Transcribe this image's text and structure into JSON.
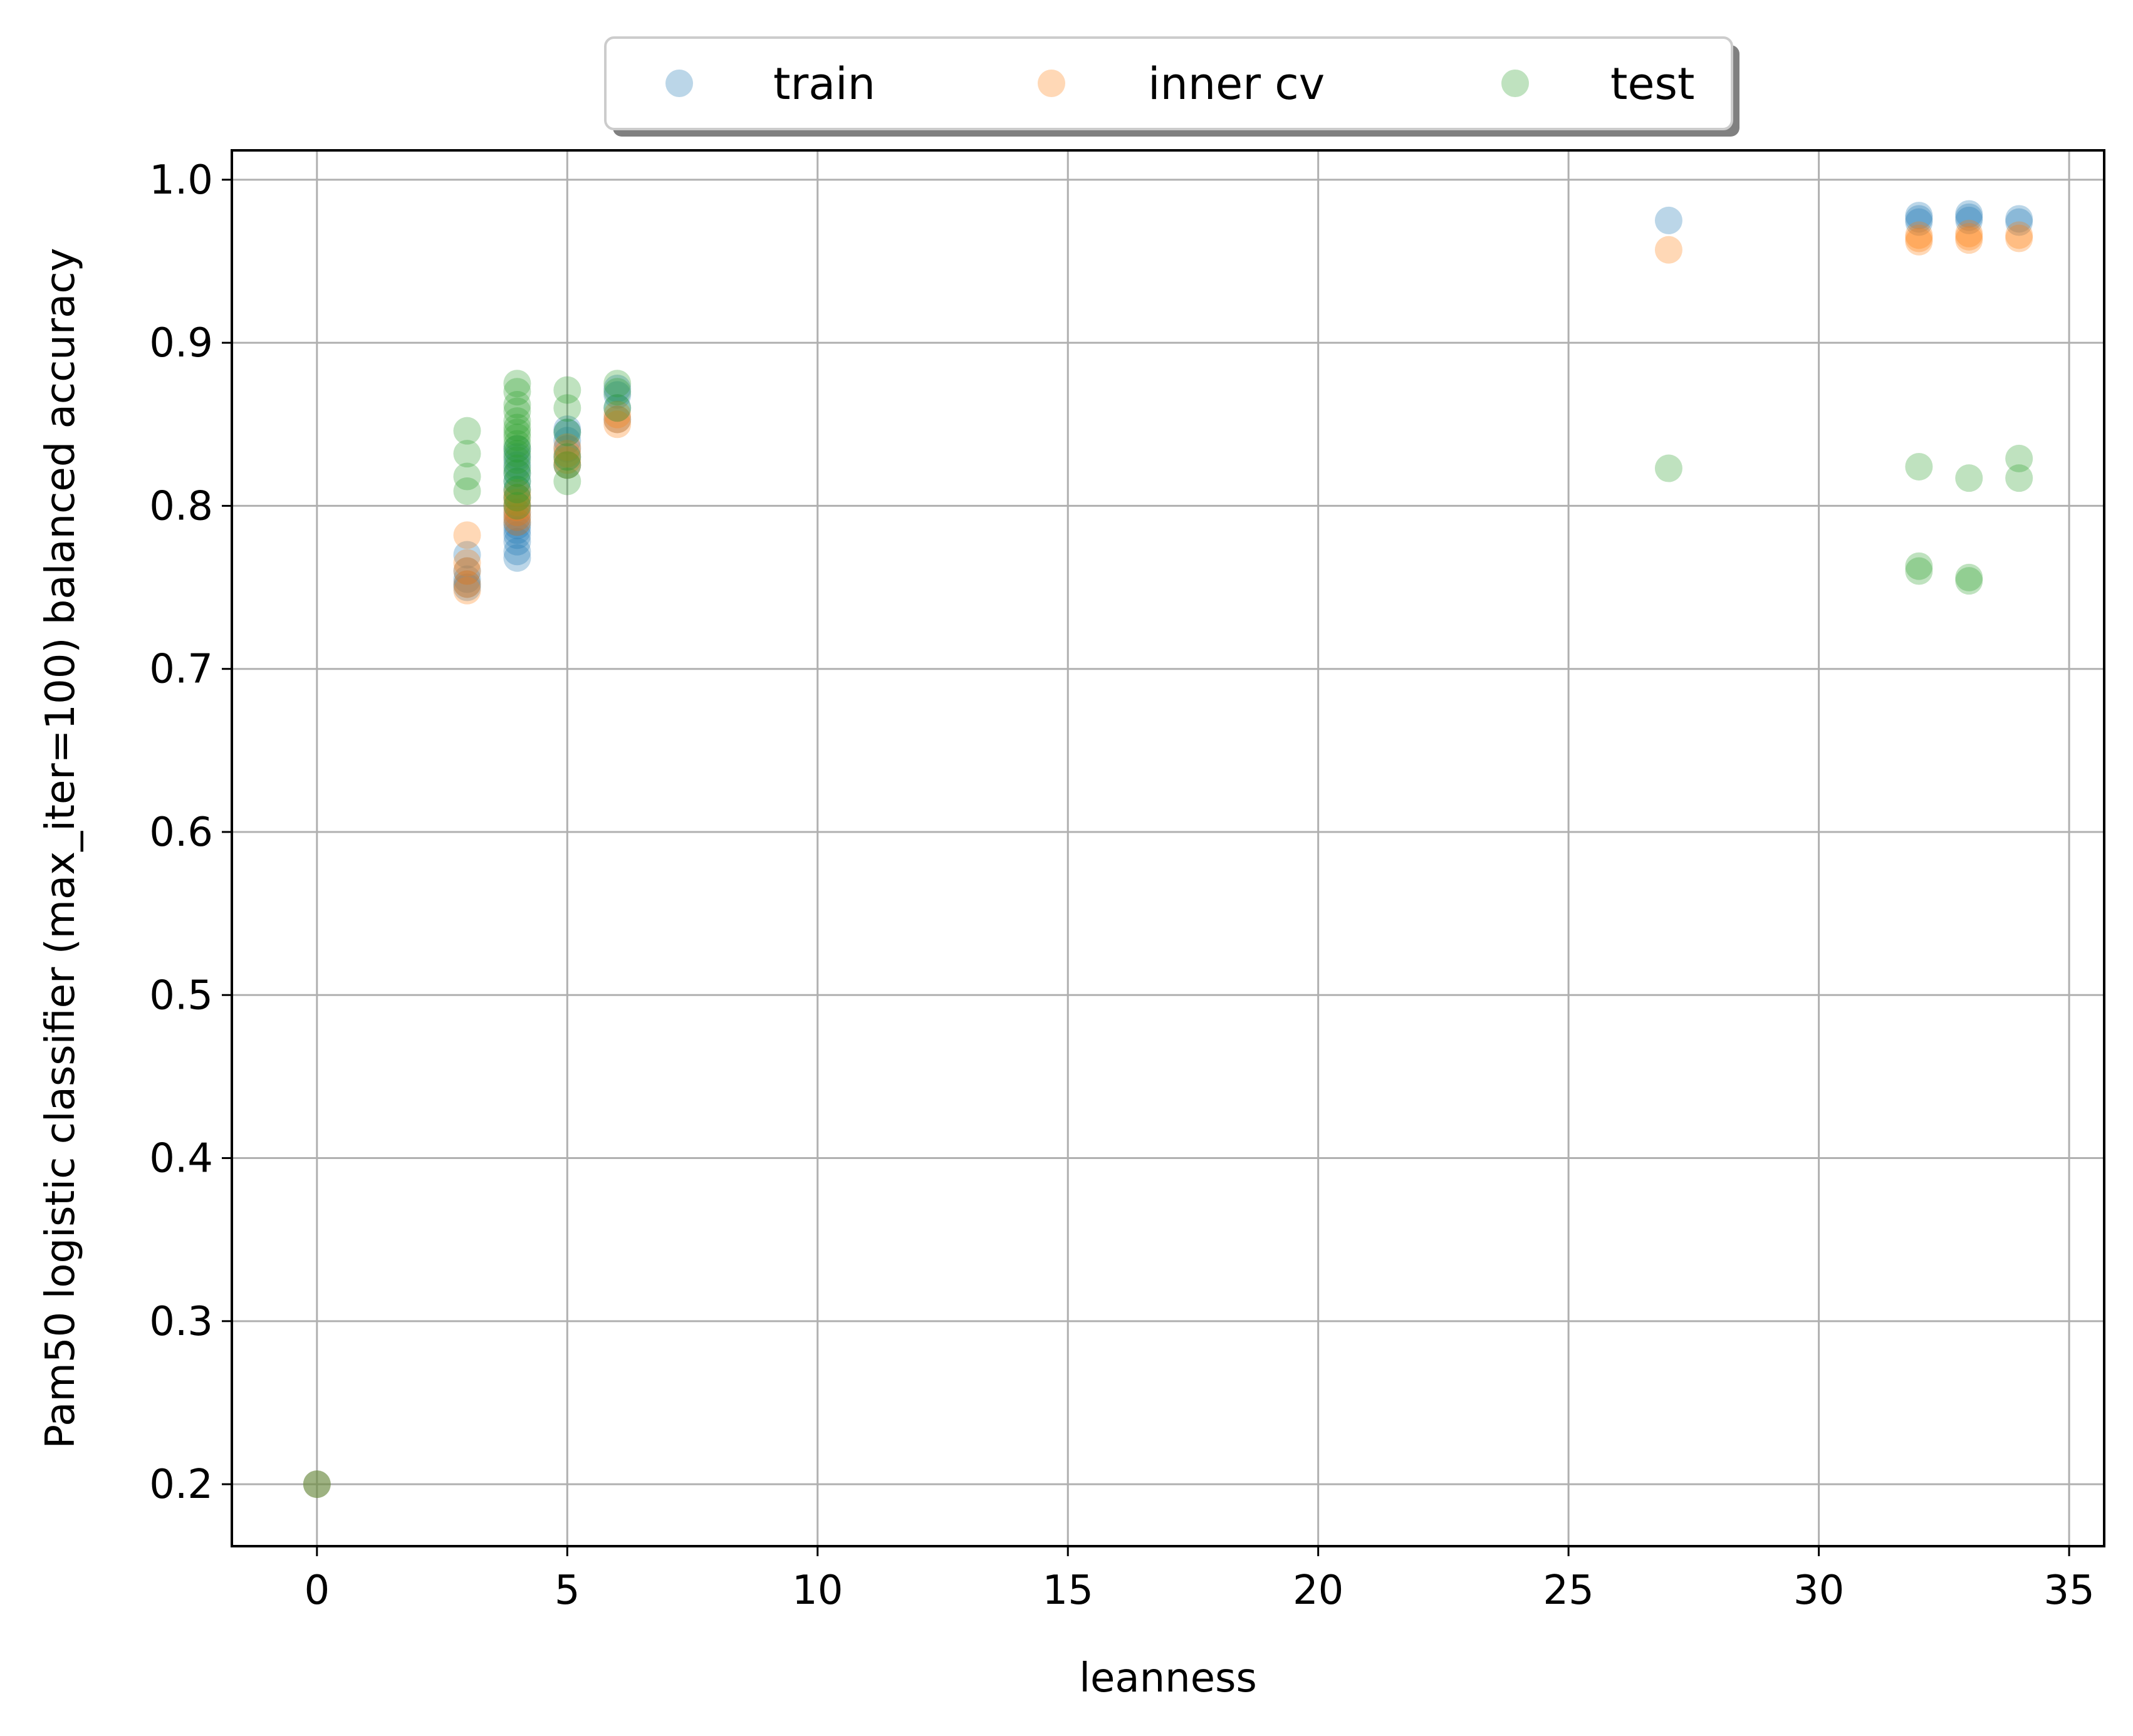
{
  "chart_data": {
    "type": "scatter",
    "xlabel": "leanness",
    "ylabel": "Pam50 logistic classifier (max_iter=100) balanced accuracy",
    "xlim": [
      -1.7,
      35.7
    ],
    "ylim": [
      0.162,
      1.018
    ],
    "xticks": [
      0,
      5,
      10,
      15,
      20,
      25,
      30,
      35
    ],
    "yticks": [
      0.2,
      0.3,
      0.4,
      0.5,
      0.6,
      0.7,
      0.8,
      0.9,
      1.0
    ],
    "xtick_labels": [
      "0",
      "5",
      "10",
      "15",
      "20",
      "25",
      "30",
      "35"
    ],
    "ytick_labels": [
      "0.2",
      "0.3",
      "0.4",
      "0.5",
      "0.6",
      "0.7",
      "0.8",
      "0.9",
      "1.0"
    ],
    "grid": true,
    "legend_position": "top-center",
    "series": [
      {
        "name": "train",
        "color": "#1f77b4",
        "points": [
          [
            0,
            0.2
          ],
          [
            3,
            0.77
          ],
          [
            3,
            0.76
          ],
          [
            3,
            0.755
          ],
          [
            3,
            0.752
          ],
          [
            3,
            0.75
          ],
          [
            4,
            0.768
          ],
          [
            4,
            0.772
          ],
          [
            4,
            0.778
          ],
          [
            4,
            0.782
          ],
          [
            4,
            0.785
          ],
          [
            4,
            0.788
          ],
          [
            4,
            0.79
          ],
          [
            4,
            0.793
          ],
          [
            4,
            0.796
          ],
          [
            4,
            0.8
          ],
          [
            4,
            0.805
          ],
          [
            4,
            0.81
          ],
          [
            4,
            0.815
          ],
          [
            4,
            0.82
          ],
          [
            4,
            0.825
          ],
          [
            4,
            0.83
          ],
          [
            4,
            0.835
          ],
          [
            5,
            0.825
          ],
          [
            5,
            0.83
          ],
          [
            5,
            0.835
          ],
          [
            5,
            0.84
          ],
          [
            5,
            0.845
          ],
          [
            5,
            0.847
          ],
          [
            6,
            0.853
          ],
          [
            6,
            0.86
          ],
          [
            6,
            0.868
          ],
          [
            6,
            0.872
          ],
          [
            27,
            0.975
          ],
          [
            32,
            0.974
          ],
          [
            32,
            0.976
          ],
          [
            32,
            0.978
          ],
          [
            33,
            0.975
          ],
          [
            33,
            0.977
          ],
          [
            33,
            0.979
          ],
          [
            34,
            0.974
          ],
          [
            34,
            0.976
          ]
        ]
      },
      {
        "name": "inner cv",
        "color": "#ff7f0e",
        "points": [
          [
            0,
            0.2
          ],
          [
            3,
            0.782
          ],
          [
            3,
            0.765
          ],
          [
            3,
            0.76
          ],
          [
            3,
            0.752
          ],
          [
            3,
            0.748
          ],
          [
            4,
            0.79
          ],
          [
            4,
            0.793
          ],
          [
            4,
            0.796
          ],
          [
            4,
            0.799
          ],
          [
            4,
            0.802
          ],
          [
            4,
            0.805
          ],
          [
            4,
            0.808
          ],
          [
            5,
            0.825
          ],
          [
            5,
            0.828
          ],
          [
            5,
            0.832
          ],
          [
            5,
            0.836
          ],
          [
            6,
            0.85
          ],
          [
            6,
            0.853
          ],
          [
            6,
            0.856
          ],
          [
            27,
            0.957
          ],
          [
            32,
            0.962
          ],
          [
            32,
            0.964
          ],
          [
            32,
            0.966
          ],
          [
            33,
            0.963
          ],
          [
            33,
            0.965
          ],
          [
            33,
            0.967
          ],
          [
            34,
            0.964
          ],
          [
            34,
            0.966
          ]
        ]
      },
      {
        "name": "test",
        "color": "#2ca02c",
        "points": [
          [
            0,
            0.2
          ],
          [
            3,
            0.846
          ],
          [
            3,
            0.832
          ],
          [
            3,
            0.818
          ],
          [
            3,
            0.809
          ],
          [
            4,
            0.875
          ],
          [
            4,
            0.87
          ],
          [
            4,
            0.862
          ],
          [
            4,
            0.858
          ],
          [
            4,
            0.852
          ],
          [
            4,
            0.848
          ],
          [
            4,
            0.845
          ],
          [
            4,
            0.842
          ],
          [
            4,
            0.838
          ],
          [
            4,
            0.835
          ],
          [
            4,
            0.832
          ],
          [
            4,
            0.828
          ],
          [
            4,
            0.823
          ],
          [
            4,
            0.82
          ],
          [
            4,
            0.815
          ],
          [
            4,
            0.81
          ],
          [
            4,
            0.805
          ],
          [
            4,
            0.8
          ],
          [
            5,
            0.871
          ],
          [
            5,
            0.86
          ],
          [
            5,
            0.845
          ],
          [
            5,
            0.83
          ],
          [
            5,
            0.825
          ],
          [
            5,
            0.815
          ],
          [
            6,
            0.875
          ],
          [
            6,
            0.87
          ],
          [
            6,
            0.86
          ],
          [
            27,
            0.823
          ],
          [
            32,
            0.824
          ],
          [
            32,
            0.763
          ],
          [
            32,
            0.76
          ],
          [
            33,
            0.817
          ],
          [
            33,
            0.756
          ],
          [
            33,
            0.754
          ],
          [
            34,
            0.829
          ],
          [
            34,
            0.817
          ]
        ]
      }
    ]
  }
}
